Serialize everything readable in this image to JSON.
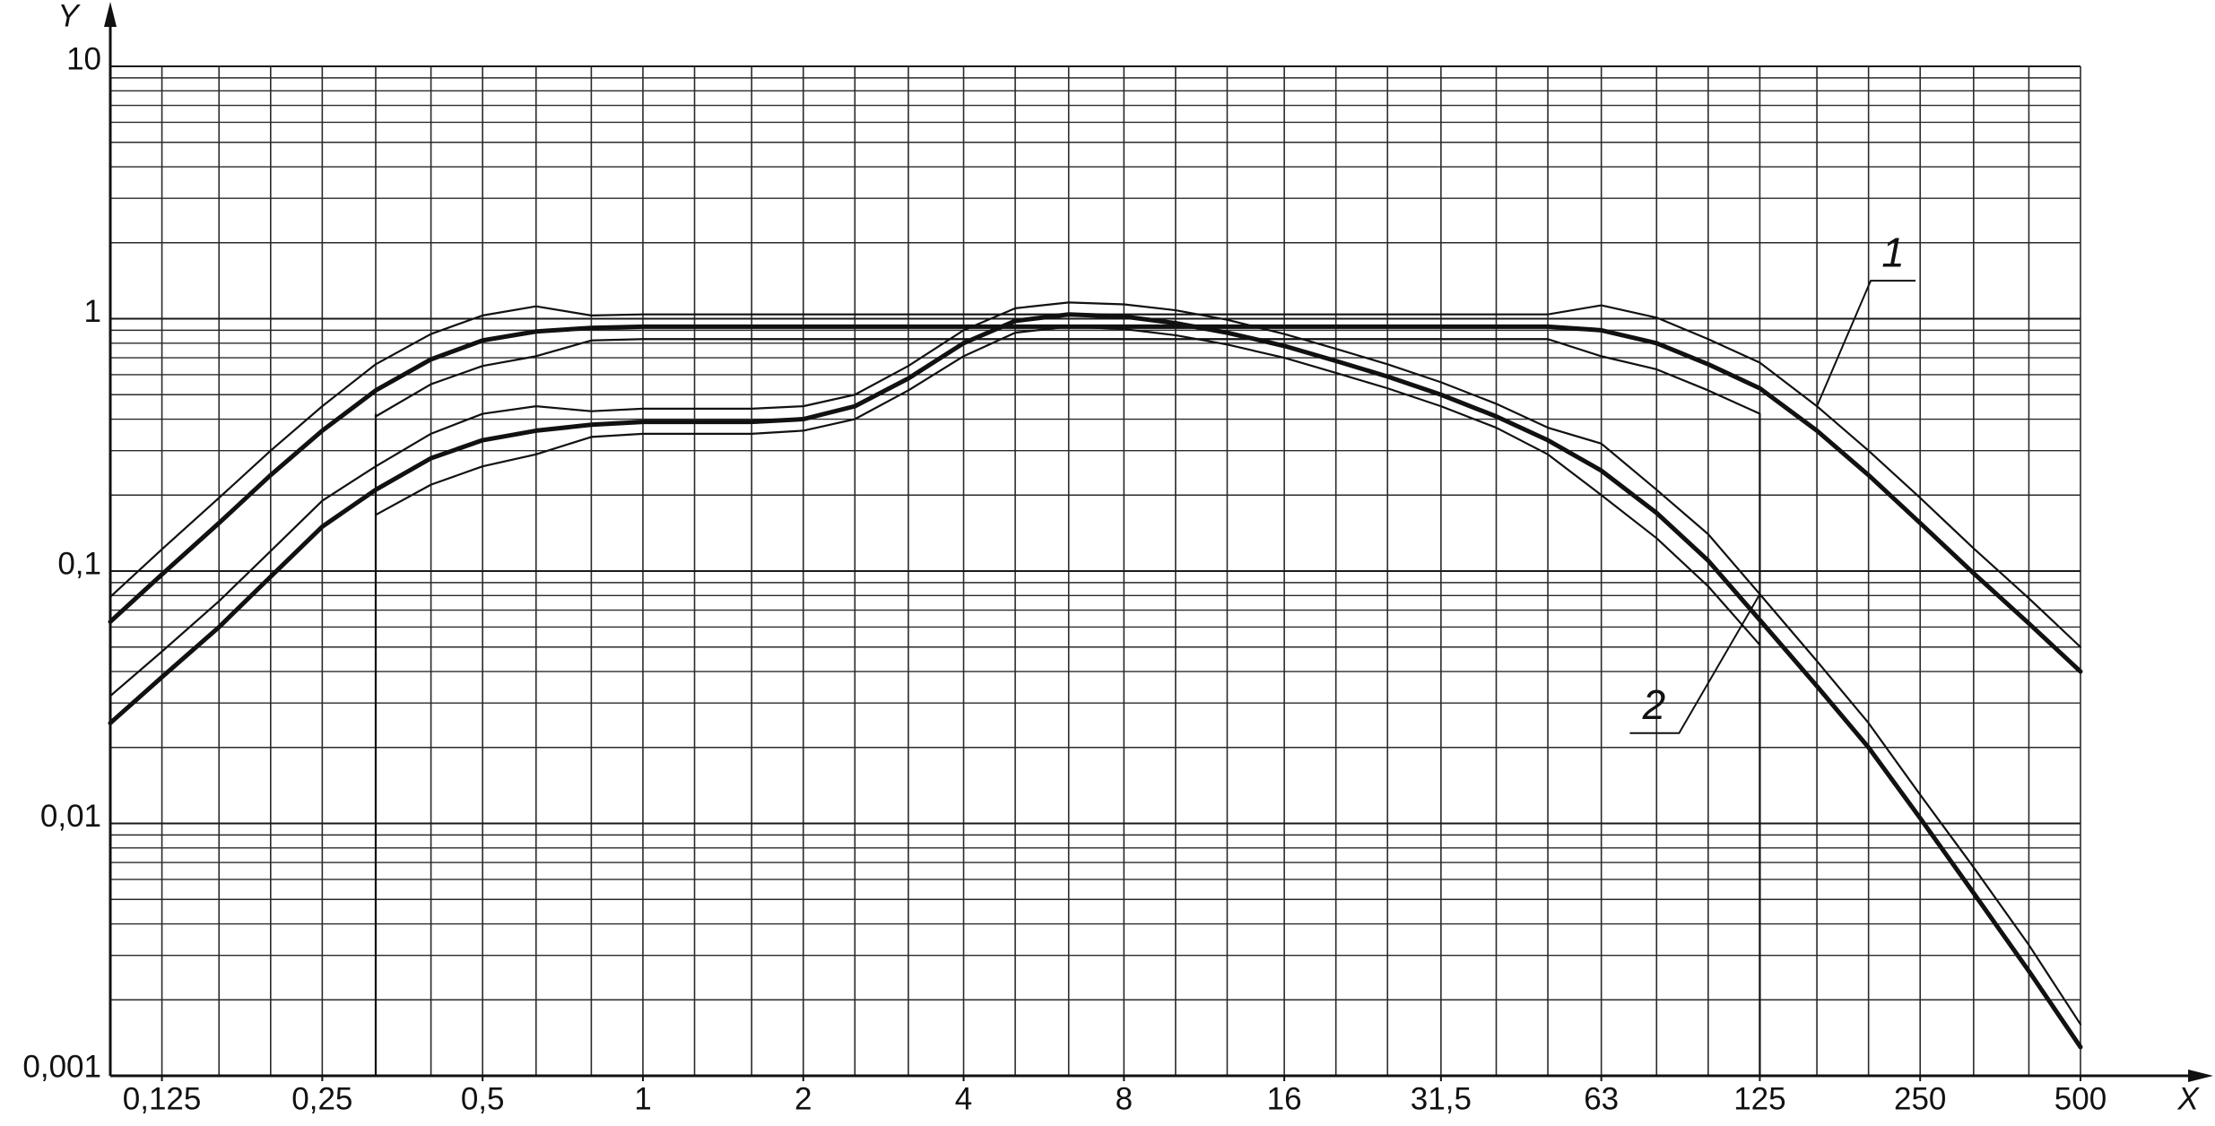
{
  "chart_data": {
    "type": "line",
    "xlabel": "X",
    "ylabel": "Y",
    "log_x": true,
    "log_y": true,
    "grid": true,
    "xlim": [
      0.1,
      500
    ],
    "ylim": [
      0.001,
      10
    ],
    "xticks": [
      {
        "value": 0.125,
        "label": "0,125"
      },
      {
        "value": 0.25,
        "label": "0,25"
      },
      {
        "value": 0.5,
        "label": "0,5"
      },
      1,
      2,
      4,
      8,
      16,
      {
        "value": 31.5,
        "label": "31,5"
      },
      63,
      125,
      250,
      500
    ],
    "yticks": [
      {
        "value": 0.001,
        "label": "0,001"
      },
      {
        "value": 0.01,
        "label": "0,01"
      },
      {
        "value": 0.1,
        "label": "0,1"
      },
      1,
      10
    ],
    "yminor_ticks": [
      0.002,
      0.003,
      0.004,
      0.005,
      0.006,
      0.007,
      0.008,
      0.009,
      0.02,
      0.03,
      0.04,
      0.05,
      0.06,
      0.07,
      0.08,
      0.09,
      0.2,
      0.3,
      0.4,
      0.5,
      0.6,
      0.7,
      0.8,
      0.9,
      2,
      3,
      4,
      5,
      6,
      7,
      8,
      9
    ],
    "x": [
      0.1,
      0.125,
      0.16,
      0.2,
      0.25,
      0.315,
      0.4,
      0.5,
      0.63,
      0.8,
      1,
      1.25,
      1.6,
      2,
      2.5,
      3.15,
      4,
      5,
      6.3,
      8,
      10,
      12.5,
      16,
      20,
      25,
      31.5,
      40,
      50,
      63,
      80,
      100,
      125,
      160,
      200,
      250,
      315,
      400,
      500
    ],
    "series": [
      {
        "name": "1",
        "color": "#111111",
        "values": [
          0.063,
          0.097,
          0.155,
          0.24,
          0.36,
          0.52,
          0.69,
          0.82,
          0.89,
          0.92,
          0.93,
          0.93,
          0.93,
          0.93,
          0.93,
          0.93,
          0.93,
          0.93,
          0.93,
          0.93,
          0.93,
          0.93,
          0.93,
          0.93,
          0.93,
          0.93,
          0.93,
          0.93,
          0.9,
          0.8,
          0.66,
          0.53,
          0.36,
          0.24,
          0.155,
          0.098,
          0.062,
          0.04
        ],
        "upper": [
          0.079,
          0.122,
          0.195,
          0.3,
          0.45,
          0.66,
          0.87,
          1.03,
          1.12,
          1.03,
          1.04,
          1.04,
          1.04,
          1.04,
          1.04,
          1.04,
          1.04,
          1.04,
          1.04,
          1.04,
          1.04,
          1.04,
          1.04,
          1.04,
          1.04,
          1.04,
          1.04,
          1.04,
          1.13,
          1.01,
          0.83,
          0.67,
          0.45,
          0.3,
          0.195,
          0.123,
          0.078,
          0.05
        ],
        "lower": [
          null,
          null,
          null,
          null,
          null,
          0.41,
          0.55,
          0.65,
          0.71,
          0.82,
          0.83,
          0.83,
          0.83,
          0.83,
          0.83,
          0.83,
          0.83,
          0.83,
          0.83,
          0.83,
          0.83,
          0.83,
          0.83,
          0.83,
          0.83,
          0.83,
          0.83,
          0.83,
          0.71,
          0.63,
          0.52,
          0.42,
          null,
          null,
          null,
          null,
          null,
          null
        ]
      },
      {
        "name": "2",
        "color": "#111111",
        "values": [
          0.025,
          0.038,
          0.06,
          0.095,
          0.15,
          0.21,
          0.28,
          0.33,
          0.36,
          0.38,
          0.39,
          0.39,
          0.39,
          0.4,
          0.45,
          0.58,
          0.8,
          0.98,
          1.04,
          1.02,
          0.96,
          0.88,
          0.78,
          0.68,
          0.59,
          0.5,
          0.41,
          0.33,
          0.25,
          0.17,
          0.11,
          0.064,
          0.035,
          0.02,
          0.0105,
          0.0053,
          0.0026,
          0.0013
        ],
        "upper": [
          0.032,
          0.048,
          0.076,
          0.12,
          0.19,
          0.26,
          0.35,
          0.42,
          0.45,
          0.43,
          0.44,
          0.44,
          0.44,
          0.45,
          0.5,
          0.65,
          0.9,
          1.1,
          1.16,
          1.14,
          1.08,
          0.99,
          0.87,
          0.76,
          0.66,
          0.56,
          0.46,
          0.37,
          0.32,
          0.21,
          0.14,
          0.081,
          0.044,
          0.025,
          0.013,
          0.0067,
          0.0033,
          0.0016
        ],
        "lower": [
          null,
          null,
          null,
          null,
          null,
          0.167,
          0.22,
          0.26,
          0.29,
          0.34,
          0.35,
          0.35,
          0.35,
          0.36,
          0.4,
          0.52,
          0.71,
          0.88,
          0.93,
          0.91,
          0.86,
          0.79,
          0.7,
          0.61,
          0.53,
          0.45,
          0.37,
          0.29,
          0.2,
          0.135,
          0.087,
          0.051,
          null,
          null,
          null,
          null,
          null,
          null
        ]
      }
    ],
    "reference_lines": [
      {
        "x": 0.315,
        "ytop": 0.42
      },
      {
        "x": 125,
        "ytop": 0.42
      }
    ]
  }
}
